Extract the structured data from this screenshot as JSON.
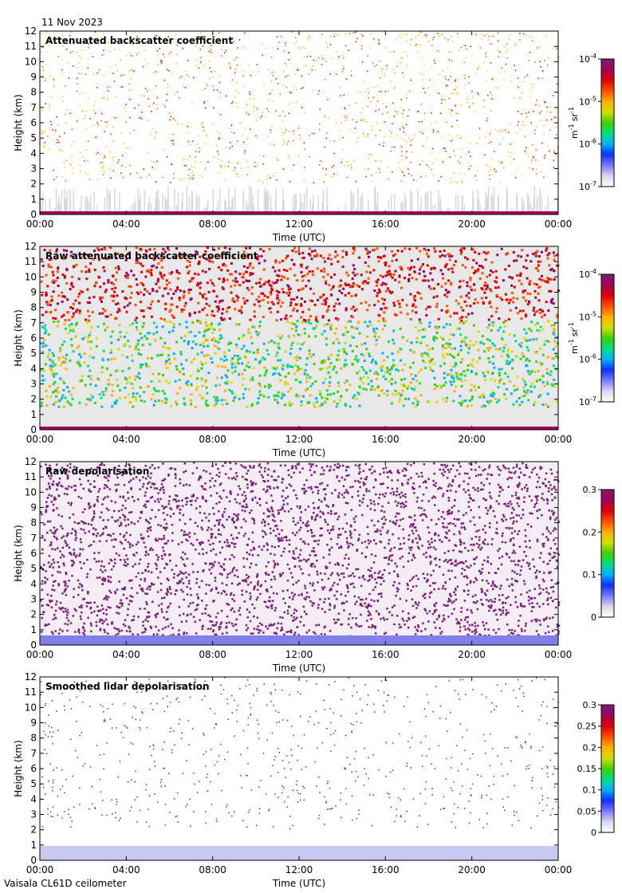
{
  "header": {
    "date": "11 Nov 2023"
  },
  "footer": {
    "instrument": "Vaisala CL61D ceilometer"
  },
  "colormap": [
    "#ffffff",
    "#d8d8f0",
    "#7a7aff",
    "#1030ff",
    "#00b0ff",
    "#00e080",
    "#40d000",
    "#d0e000",
    "#ffb000",
    "#ff5000",
    "#e00000",
    "#a0005a",
    "#7a1f7a"
  ],
  "chart_data": [
    {
      "type": "heatmap",
      "title": "Attenuated backscatter coefficient",
      "xlabel": "Time (UTC)",
      "ylabel": "Height (km)",
      "xticks": [
        "00:00",
        "04:00",
        "08:00",
        "12:00",
        "16:00",
        "20:00",
        "00:00"
      ],
      "yticks": [
        "0",
        "1",
        "2",
        "3",
        "4",
        "5",
        "6",
        "7",
        "8",
        "9",
        "10",
        "11",
        "12"
      ],
      "ylim": [
        0,
        12
      ],
      "colorbar": {
        "scale": "log",
        "ticks": [
          {
            "base": "10",
            "exp": "-4"
          },
          {
            "base": "10",
            "exp": "-5"
          },
          {
            "base": "10",
            "exp": "-6"
          },
          {
            "base": "10",
            "exp": "-7"
          }
        ],
        "units": {
          "m": "m",
          "mexp": "-1",
          "sr": "sr",
          "srexp": "-1"
        },
        "range": [
          1e-07,
          0.0001
        ]
      }
    },
    {
      "type": "heatmap",
      "title": "Raw attenuated backscatter coefficient",
      "xlabel": "Time (UTC)",
      "ylabel": "Height (km)",
      "xticks": [
        "00:00",
        "04:00",
        "08:00",
        "12:00",
        "16:00",
        "20:00",
        "00:00"
      ],
      "yticks": [
        "0",
        "1",
        "2",
        "3",
        "4",
        "5",
        "6",
        "7",
        "8",
        "9",
        "10",
        "11",
        "12"
      ],
      "ylim": [
        0,
        12
      ],
      "colorbar": {
        "scale": "log",
        "ticks": [
          {
            "base": "10",
            "exp": "-4"
          },
          {
            "base": "10",
            "exp": "-5"
          },
          {
            "base": "10",
            "exp": "-6"
          },
          {
            "base": "10",
            "exp": "-7"
          }
        ],
        "units": {
          "m": "m",
          "mexp": "-1",
          "sr": "sr",
          "srexp": "-1"
        },
        "range": [
          1e-07,
          0.0001
        ]
      }
    },
    {
      "type": "heatmap",
      "title": "Raw depolarisation",
      "xlabel": "Time (UTC)",
      "ylabel": "Height (km)",
      "xticks": [
        "00:00",
        "04:00",
        "08:00",
        "12:00",
        "16:00",
        "20:00",
        "00:00"
      ],
      "yticks": [
        "0",
        "1",
        "2",
        "3",
        "4",
        "5",
        "6",
        "7",
        "8",
        "9",
        "10",
        "11",
        "12"
      ],
      "ylim": [
        0,
        12
      ],
      "colorbar": {
        "scale": "linear",
        "ticks": [
          "0.3",
          "0.2",
          "0.1",
          "0"
        ],
        "range": [
          0,
          0.3
        ]
      }
    },
    {
      "type": "heatmap",
      "title": "Smoothed lidar depolarisation",
      "xlabel": "Time (UTC)",
      "ylabel": "Height (km)",
      "xticks": [
        "00:00",
        "04:00",
        "08:00",
        "12:00",
        "16:00",
        "20:00",
        "00:00"
      ],
      "yticks": [
        "0",
        "1",
        "2",
        "3",
        "4",
        "5",
        "6",
        "7",
        "8",
        "9",
        "10",
        "11",
        "12"
      ],
      "ylim": [
        0,
        12
      ],
      "colorbar": {
        "scale": "linear",
        "ticks": [
          "0.3",
          "0.25",
          "0.2",
          "0.15",
          "0.1",
          "0.05",
          "0"
        ],
        "range": [
          0,
          0.3
        ]
      }
    }
  ]
}
